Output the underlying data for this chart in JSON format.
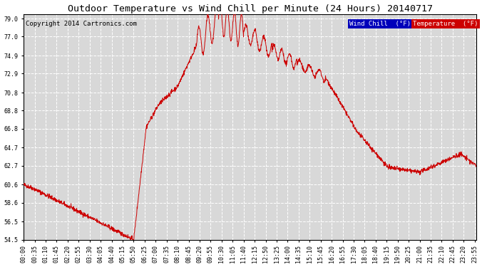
{
  "title": "Outdoor Temperature vs Wind Chill per Minute (24 Hours) 20140717",
  "copyright": "Copyright 2014 Cartronics.com",
  "legend_labels": [
    "Wind Chill  (°F)",
    "Temperature  (°F)"
  ],
  "legend_bg_colors": [
    "#0000bb",
    "#cc0000"
  ],
  "line_color": "#cc0000",
  "background_color": "#ffffff",
  "plot_bg_color": "#d8d8d8",
  "grid_color": "#ffffff",
  "yticks": [
    54.5,
    56.5,
    58.6,
    60.6,
    62.7,
    64.7,
    66.8,
    68.8,
    70.8,
    72.9,
    74.9,
    77.0,
    79.0
  ],
  "xtick_labels": [
    "00:00",
    "00:35",
    "01:10",
    "01:45",
    "02:20",
    "02:55",
    "03:30",
    "04:05",
    "04:40",
    "05:15",
    "05:50",
    "06:25",
    "07:00",
    "07:35",
    "08:10",
    "08:45",
    "09:20",
    "09:55",
    "10:30",
    "11:05",
    "11:40",
    "12:15",
    "12:50",
    "13:25",
    "14:00",
    "14:35",
    "15:10",
    "15:45",
    "16:20",
    "16:55",
    "17:30",
    "18:05",
    "18:40",
    "19:15",
    "19:50",
    "20:25",
    "21:00",
    "21:35",
    "22:10",
    "22:45",
    "23:20",
    "23:55"
  ],
  "ymin": 54.5,
  "ymax": 79.0
}
